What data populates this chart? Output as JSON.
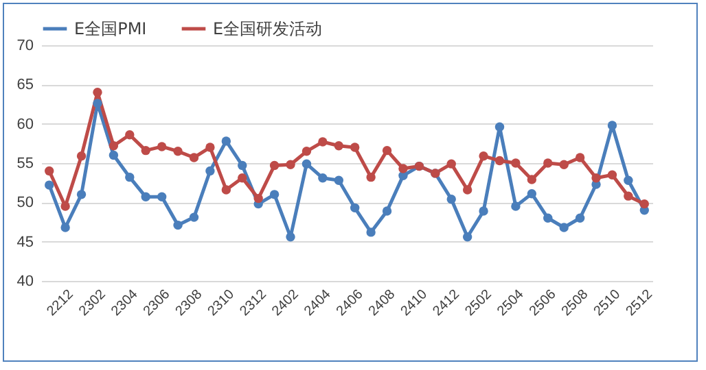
{
  "chart_data": {
    "type": "line",
    "categories": [
      null,
      "2212",
      null,
      "2302",
      null,
      "2304",
      null,
      "2306",
      null,
      "2308",
      null,
      "2310",
      null,
      "2312",
      null,
      "2402",
      null,
      "2404",
      null,
      "2406",
      null,
      "2408",
      null,
      "2410",
      null,
      "2412",
      null,
      "2502",
      null,
      "2504",
      null,
      "2506",
      null,
      "2508",
      null,
      "2510",
      null,
      "2512"
    ],
    "series": [
      {
        "name": "E全国PMI",
        "color": "#4a7ebb",
        "values": [
          52.2,
          46.8,
          51.0,
          62.6,
          56.0,
          53.2,
          50.7,
          50.7,
          47.1,
          48.1,
          54.0,
          57.8,
          54.7,
          49.8,
          51.0,
          45.6,
          54.9,
          53.1,
          52.8,
          49.3,
          46.2,
          48.9,
          53.4,
          54.6,
          53.7,
          50.4,
          45.6,
          48.9,
          59.6,
          49.5,
          51.1,
          48.0,
          46.8,
          48.0,
          52.3,
          59.8,
          52.8,
          49.0
        ]
      },
      {
        "name": "E全国研发活动",
        "color": "#be4b48",
        "values": [
          54.0,
          49.5,
          55.9,
          64.0,
          57.2,
          58.6,
          56.6,
          57.1,
          56.5,
          55.7,
          57.0,
          51.6,
          53.1,
          50.5,
          54.7,
          54.8,
          56.5,
          57.7,
          57.2,
          57.0,
          53.2,
          56.6,
          54.3,
          54.6,
          53.7,
          54.9,
          51.6,
          55.9,
          55.3,
          55.0,
          52.9,
          55.0,
          54.8,
          55.7,
          53.1,
          53.5,
          50.8,
          49.8
        ]
      }
    ],
    "ylim": [
      40,
      70
    ],
    "yticks": [
      40,
      45,
      50,
      55,
      60,
      65,
      70
    ],
    "grid": "y",
    "legend": "top",
    "marker": "circle",
    "line_style": "solid"
  }
}
